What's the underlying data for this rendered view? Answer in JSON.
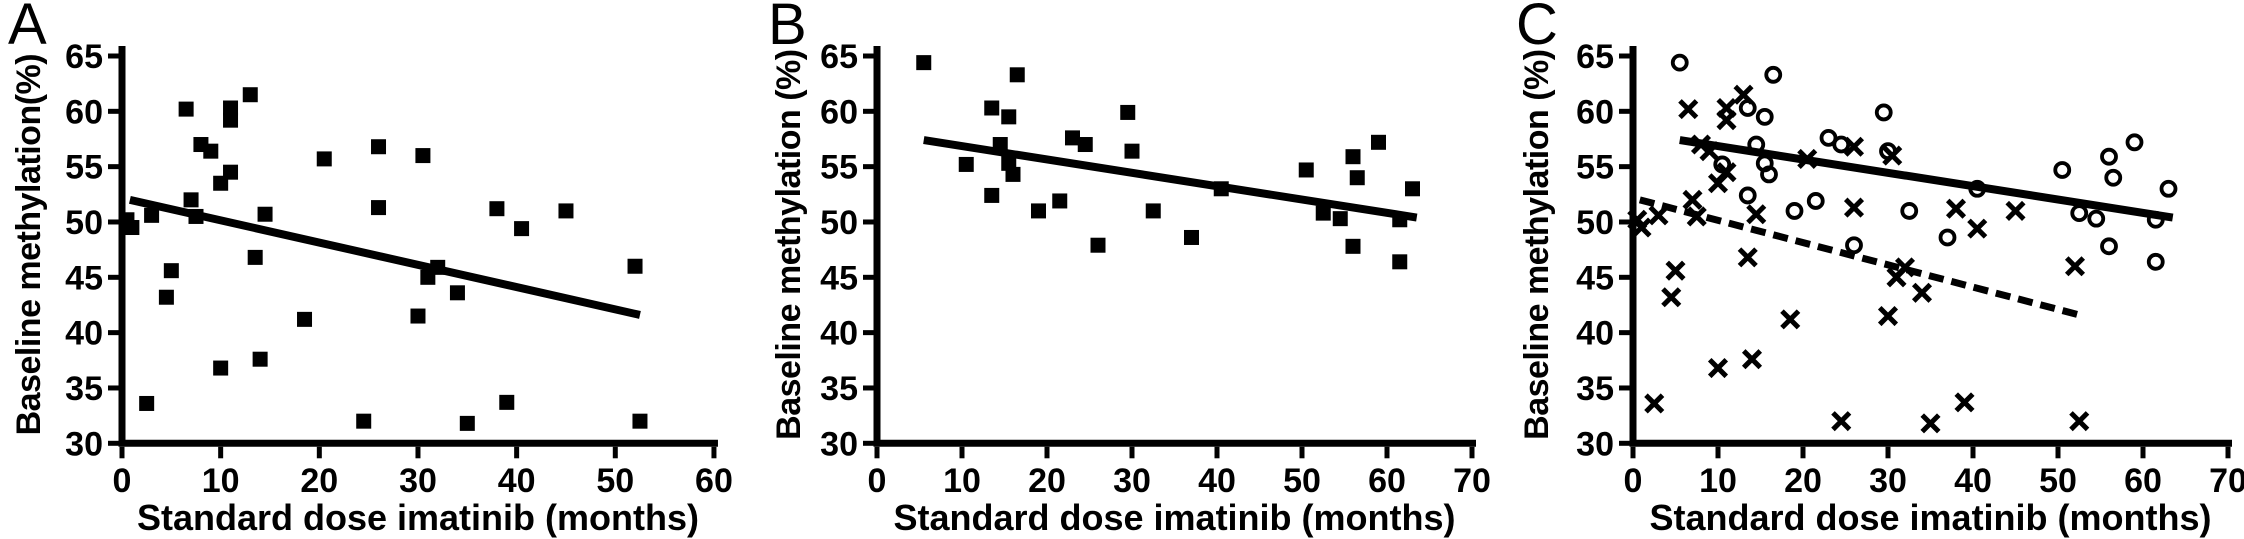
{
  "figure": {
    "background_color": "#ffffff",
    "ink_color": "#000000",
    "panel_letters": [
      "A",
      "B",
      "C"
    ]
  },
  "chart_data": [
    {
      "type": "scatter",
      "panel_label": "A",
      "title": "",
      "xlabel": "Standard dose imatinib (months)",
      "ylabel": "Baseline methylation(%)",
      "xlim": [
        0,
        60
      ],
      "ylim": [
        30,
        65
      ],
      "xticks": [
        0,
        10,
        20,
        30,
        40,
        50,
        60
      ],
      "yticks": [
        30,
        35,
        40,
        45,
        50,
        55,
        60,
        65
      ],
      "grid": false,
      "legend": "none",
      "series": [
        {
          "name": "patients-squares",
          "marker": "square",
          "points": [
            [
              0.5,
              50.2
            ],
            [
              1,
              49.5
            ],
            [
              2.5,
              33.6
            ],
            [
              3,
              50.6
            ],
            [
              4.5,
              43.2
            ],
            [
              5,
              45.6
            ],
            [
              6.5,
              60.2
            ],
            [
              7,
              52.0
            ],
            [
              7.5,
              50.5
            ],
            [
              8,
              57.0
            ],
            [
              9,
              56.4
            ],
            [
              10,
              36.8
            ],
            [
              10,
              53.5
            ],
            [
              11,
              60.3
            ],
            [
              11,
              59.2
            ],
            [
              11,
              54.5
            ],
            [
              13,
              61.5
            ],
            [
              13.5,
              46.8
            ],
            [
              14,
              37.6
            ],
            [
              14.5,
              50.7
            ],
            [
              18.5,
              41.2
            ],
            [
              20.5,
              55.7
            ],
            [
              24.5,
              32.0
            ],
            [
              26,
              56.8
            ],
            [
              26,
              51.3
            ],
            [
              30,
              41.5
            ],
            [
              30.5,
              56.0
            ],
            [
              31,
              45.0
            ],
            [
              32,
              45.9
            ],
            [
              34,
              43.6
            ],
            [
              35,
              31.8
            ],
            [
              38,
              51.2
            ],
            [
              39,
              33.7
            ],
            [
              40.5,
              49.4
            ],
            [
              45,
              51.0
            ],
            [
              52,
              46.0
            ],
            [
              52.5,
              32.0
            ]
          ]
        }
      ],
      "fit_lines": [
        {
          "style": "solid",
          "from": [
            0.8,
            52.0
          ],
          "to": [
            52.5,
            41.6
          ]
        }
      ]
    },
    {
      "type": "scatter",
      "panel_label": "B",
      "title": "",
      "xlabel": "Standard dose imatinib (months)",
      "ylabel": "Baseline methylation (%)",
      "xlim": [
        0,
        70
      ],
      "ylim": [
        30,
        65
      ],
      "xticks": [
        0,
        10,
        20,
        30,
        40,
        50,
        60,
        70
      ],
      "yticks": [
        30,
        35,
        40,
        45,
        50,
        55,
        60,
        65
      ],
      "grid": false,
      "legend": "none",
      "series": [
        {
          "name": "patients-squares",
          "marker": "square",
          "points": [
            [
              5.5,
              64.4
            ],
            [
              10.5,
              55.2
            ],
            [
              13.5,
              52.4
            ],
            [
              13.5,
              60.3
            ],
            [
              14.5,
              57.0
            ],
            [
              15.5,
              59.5
            ],
            [
              15.5,
              55.3
            ],
            [
              16,
              54.3
            ],
            [
              16.5,
              63.3
            ],
            [
              19,
              51.0
            ],
            [
              21.5,
              51.9
            ],
            [
              23,
              57.6
            ],
            [
              24.5,
              57.0
            ],
            [
              26,
              47.9
            ],
            [
              29.5,
              59.9
            ],
            [
              30,
              56.4
            ],
            [
              32.5,
              51.0
            ],
            [
              37,
              48.6
            ],
            [
              40.5,
              53.0
            ],
            [
              50.5,
              54.7
            ],
            [
              52.5,
              50.8
            ],
            [
              54.5,
              50.3
            ],
            [
              56,
              55.9
            ],
            [
              56,
              47.8
            ],
            [
              56.5,
              54.0
            ],
            [
              59,
              57.2
            ],
            [
              61.5,
              50.2
            ],
            [
              61.5,
              46.4
            ],
            [
              63,
              53.0
            ]
          ]
        }
      ],
      "fit_lines": [
        {
          "style": "solid",
          "from": [
            5.5,
            57.4
          ],
          "to": [
            63.5,
            50.4
          ]
        }
      ]
    },
    {
      "type": "scatter",
      "panel_label": "C",
      "title": "",
      "xlabel": "Standard dose imatinib (months)",
      "ylabel": "Baseline methylation (%)",
      "xlim": [
        0,
        70
      ],
      "ylim": [
        30,
        65
      ],
      "xticks": [
        0,
        10,
        20,
        30,
        40,
        50,
        60,
        70
      ],
      "yticks": [
        30,
        35,
        40,
        45,
        50,
        55,
        60,
        65
      ],
      "grid": false,
      "legend": "none",
      "series": [
        {
          "name": "cohort-crosses",
          "marker": "cross",
          "points": [
            [
              0.5,
              50.2
            ],
            [
              1,
              49.5
            ],
            [
              2.5,
              33.6
            ],
            [
              3,
              50.6
            ],
            [
              4.5,
              43.2
            ],
            [
              5,
              45.6
            ],
            [
              6.5,
              60.2
            ],
            [
              7,
              52.0
            ],
            [
              7.5,
              50.5
            ],
            [
              8,
              57.0
            ],
            [
              9,
              56.4
            ],
            [
              10,
              36.8
            ],
            [
              10,
              53.5
            ],
            [
              11,
              60.3
            ],
            [
              11,
              59.2
            ],
            [
              11,
              54.5
            ],
            [
              13,
              61.5
            ],
            [
              13.5,
              46.8
            ],
            [
              14,
              37.6
            ],
            [
              14.5,
              50.7
            ],
            [
              18.5,
              41.2
            ],
            [
              20.5,
              55.7
            ],
            [
              24.5,
              32.0
            ],
            [
              26,
              56.8
            ],
            [
              26,
              51.3
            ],
            [
              30,
              41.5
            ],
            [
              30.5,
              56.0
            ],
            [
              31,
              45.0
            ],
            [
              32,
              45.9
            ],
            [
              34,
              43.6
            ],
            [
              35,
              31.8
            ],
            [
              38,
              51.2
            ],
            [
              39,
              33.7
            ],
            [
              40.5,
              49.4
            ],
            [
              45,
              51.0
            ],
            [
              52,
              46.0
            ],
            [
              52.5,
              32.0
            ]
          ]
        },
        {
          "name": "cohort-circles",
          "marker": "circle",
          "points": [
            [
              5.5,
              64.4
            ],
            [
              10.5,
              55.2
            ],
            [
              13.5,
              52.4
            ],
            [
              13.5,
              60.3
            ],
            [
              14.5,
              57.0
            ],
            [
              15.5,
              59.5
            ],
            [
              15.5,
              55.3
            ],
            [
              16,
              54.3
            ],
            [
              16.5,
              63.3
            ],
            [
              19,
              51.0
            ],
            [
              21.5,
              51.9
            ],
            [
              23,
              57.6
            ],
            [
              24.5,
              57.0
            ],
            [
              26,
              47.9
            ],
            [
              29.5,
              59.9
            ],
            [
              30,
              56.4
            ],
            [
              32.5,
              51.0
            ],
            [
              37,
              48.6
            ],
            [
              40.5,
              53.0
            ],
            [
              50.5,
              54.7
            ],
            [
              52.5,
              50.8
            ],
            [
              54.5,
              50.3
            ],
            [
              56,
              55.9
            ],
            [
              56,
              47.8
            ],
            [
              56.5,
              54.0
            ],
            [
              59,
              57.2
            ],
            [
              61.5,
              50.2
            ],
            [
              61.5,
              46.4
            ],
            [
              63,
              53.0
            ]
          ]
        }
      ],
      "fit_lines": [
        {
          "style": "solid",
          "from": [
            5.5,
            57.4
          ],
          "to": [
            63.5,
            50.4
          ]
        },
        {
          "style": "dashed",
          "from": [
            0.8,
            52.0
          ],
          "to": [
            52.5,
            41.6
          ]
        }
      ]
    }
  ]
}
